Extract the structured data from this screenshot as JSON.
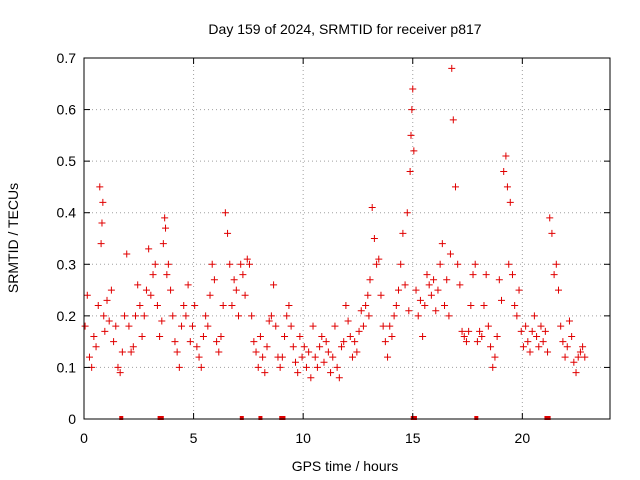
{
  "chart_data": {
    "type": "scatter",
    "title": "Day 159 of 2024, SRMTID for receiver p817",
    "xlabel": "GPS time / hours",
    "ylabel": "SRMTID / TECUs",
    "xlim": [
      0,
      24
    ],
    "ylim": [
      0,
      0.7
    ],
    "xticks": [
      "0",
      "5",
      "10",
      "15",
      "20"
    ],
    "xtick_values": [
      0,
      5,
      10,
      15,
      20
    ],
    "yticks": [
      "0",
      "0.1",
      "0.2",
      "0.3",
      "0.4",
      "0.5",
      "0.6",
      "0.7"
    ],
    "ytick_values": [
      0,
      0.1,
      0.2,
      0.3,
      0.4,
      0.5,
      0.6,
      0.7
    ],
    "grid": true,
    "marker": "plus",
    "color": "#e00000",
    "series": [
      {
        "name": "SRMTID",
        "x": [
          0.05,
          0.15,
          0.25,
          0.35,
          0.45,
          0.55,
          0.65,
          0.72,
          0.78,
          0.82,
          0.86,
          0.9,
          0.95,
          1.05,
          1.15,
          1.25,
          1.35,
          1.45,
          1.55,
          1.65,
          1.75,
          1.85,
          1.95,
          2.05,
          2.15,
          2.25,
          2.35,
          2.45,
          2.55,
          2.65,
          2.75,
          2.85,
          2.95,
          3.05,
          3.15,
          3.25,
          3.35,
          3.45,
          3.55,
          3.62,
          3.68,
          3.72,
          3.78,
          3.85,
          3.95,
          4.05,
          4.15,
          4.25,
          4.35,
          4.45,
          4.55,
          4.65,
          4.75,
          4.85,
          4.95,
          5.05,
          5.15,
          5.25,
          5.35,
          5.45,
          5.55,
          5.65,
          5.75,
          5.85,
          5.95,
          6.05,
          6.15,
          6.25,
          6.35,
          6.45,
          6.55,
          6.65,
          6.75,
          6.85,
          6.95,
          7.05,
          7.15,
          7.25,
          7.35,
          7.45,
          7.55,
          7.65,
          7.75,
          7.85,
          7.95,
          8.05,
          8.15,
          8.25,
          8.35,
          8.45,
          8.55,
          8.65,
          8.75,
          8.85,
          8.95,
          9.05,
          9.15,
          9.25,
          9.35,
          9.45,
          9.55,
          9.65,
          9.75,
          9.85,
          9.95,
          10.05,
          10.15,
          10.25,
          10.35,
          10.45,
          10.55,
          10.65,
          10.75,
          10.85,
          10.95,
          11.05,
          11.15,
          11.25,
          11.35,
          11.45,
          11.55,
          11.65,
          11.75,
          11.85,
          11.95,
          12.05,
          12.15,
          12.25,
          12.35,
          12.45,
          12.55,
          12.65,
          12.75,
          12.85,
          12.95,
          13.0,
          13.05,
          13.15,
          13.25,
          13.35,
          13.45,
          13.55,
          13.65,
          13.75,
          13.85,
          13.95,
          14.05,
          14.15,
          14.25,
          14.35,
          14.45,
          14.55,
          14.65,
          14.75,
          14.82,
          14.88,
          14.92,
          14.96,
          15.0,
          15.05,
          15.15,
          15.25,
          15.35,
          15.45,
          15.55,
          15.65,
          15.75,
          15.85,
          15.95,
          16.05,
          16.15,
          16.25,
          16.35,
          16.45,
          16.55,
          16.65,
          16.72,
          16.78,
          16.85,
          16.95,
          17.05,
          17.15,
          17.25,
          17.35,
          17.45,
          17.55,
          17.65,
          17.75,
          17.85,
          17.95,
          18.05,
          18.15,
          18.25,
          18.35,
          18.45,
          18.55,
          18.65,
          18.75,
          18.85,
          18.95,
          19.05,
          19.15,
          19.25,
          19.32,
          19.38,
          19.45,
          19.55,
          19.65,
          19.75,
          19.85,
          19.95,
          20.05,
          20.15,
          20.25,
          20.35,
          20.45,
          20.55,
          20.65,
          20.75,
          20.85,
          20.95,
          21.05,
          21.15,
          21.25,
          21.35,
          21.45,
          21.55,
          21.65,
          21.75,
          21.85,
          21.95,
          22.05,
          22.15,
          22.25,
          22.35,
          22.45,
          22.55,
          22.65,
          22.75,
          22.85
        ],
        "y": [
          0.18,
          0.24,
          0.12,
          0.1,
          0.16,
          0.14,
          0.22,
          0.45,
          0.34,
          0.38,
          0.42,
          0.2,
          0.17,
          0.23,
          0.19,
          0.25,
          0.15,
          0.18,
          0.1,
          0.09,
          0.13,
          0.2,
          0.32,
          0.18,
          0.13,
          0.14,
          0.2,
          0.26,
          0.22,
          0.16,
          0.2,
          0.25,
          0.33,
          0.24,
          0.28,
          0.3,
          0.22,
          0.16,
          0.19,
          0.34,
          0.39,
          0.37,
          0.28,
          0.3,
          0.25,
          0.2,
          0.15,
          0.13,
          0.1,
          0.18,
          0.22,
          0.2,
          0.26,
          0.15,
          0.18,
          0.22,
          0.14,
          0.12,
          0.1,
          0.16,
          0.2,
          0.18,
          0.24,
          0.3,
          0.27,
          0.15,
          0.13,
          0.16,
          0.22,
          0.4,
          0.36,
          0.3,
          0.22,
          0.27,
          0.25,
          0.2,
          0.3,
          0.28,
          0.24,
          0.31,
          0.3,
          0.2,
          0.15,
          0.13,
          0.1,
          0.16,
          0.12,
          0.09,
          0.14,
          0.19,
          0.2,
          0.26,
          0.18,
          0.12,
          0.1,
          0.12,
          0.16,
          0.2,
          0.22,
          0.18,
          0.14,
          0.11,
          0.09,
          0.16,
          0.12,
          0.14,
          0.1,
          0.13,
          0.08,
          0.18,
          0.12,
          0.1,
          0.14,
          0.16,
          0.11,
          0.15,
          0.13,
          0.09,
          0.12,
          0.18,
          0.1,
          0.08,
          0.14,
          0.15,
          0.22,
          0.19,
          0.16,
          0.12,
          0.15,
          0.13,
          0.17,
          0.21,
          0.18,
          0.22,
          0.24,
          0.2,
          0.27,
          0.41,
          0.35,
          0.3,
          0.31,
          0.24,
          0.18,
          0.15,
          0.12,
          0.18,
          0.16,
          0.2,
          0.22,
          0.25,
          0.3,
          0.36,
          0.26,
          0.4,
          0.21,
          0.48,
          0.55,
          0.6,
          0.64,
          0.52,
          0.25,
          0.2,
          0.23,
          0.16,
          0.22,
          0.28,
          0.26,
          0.24,
          0.27,
          0.21,
          0.25,
          0.3,
          0.34,
          0.22,
          0.27,
          0.2,
          0.32,
          0.68,
          0.58,
          0.45,
          0.3,
          0.26,
          0.17,
          0.16,
          0.15,
          0.17,
          0.22,
          0.28,
          0.3,
          0.15,
          0.17,
          0.16,
          0.22,
          0.28,
          0.18,
          0.14,
          0.1,
          0.12,
          0.16,
          0.27,
          0.23,
          0.48,
          0.51,
          0.45,
          0.3,
          0.42,
          0.28,
          0.22,
          0.2,
          0.25,
          0.17,
          0.14,
          0.18,
          0.15,
          0.13,
          0.17,
          0.2,
          0.16,
          0.14,
          0.18,
          0.15,
          0.17,
          0.13,
          0.39,
          0.36,
          0.28,
          0.3,
          0.25,
          0.18,
          0.15,
          0.12,
          0.14,
          0.19,
          0.16,
          0.11,
          0.09,
          0.12,
          0.13,
          0.14,
          0.12
        ]
      }
    ],
    "baseline_x": [
      1.7,
      3.45,
      3.55,
      7.2,
      8.05,
      9.0,
      9.1,
      15.0,
      15.1,
      17.9,
      21.1,
      21.2
    ]
  }
}
